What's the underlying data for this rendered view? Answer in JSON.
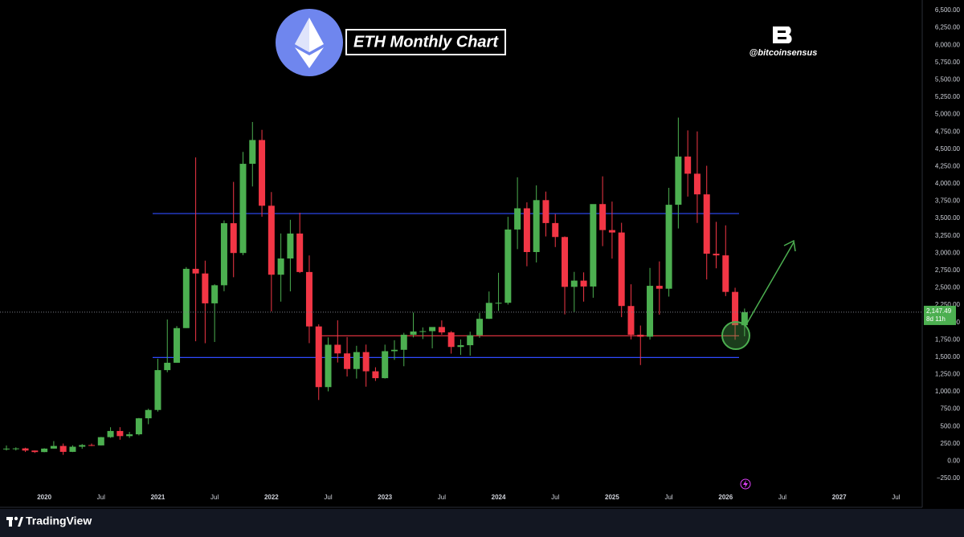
{
  "chart_data": {
    "type": "candlestick",
    "title": "ETH Monthly Chart",
    "watermark": "@bitcoinsensus",
    "platform": "TradingView",
    "categories": [
      null,
      null,
      null,
      null,
      "2020",
      null,
      null,
      null,
      null,
      null,
      "Jul",
      null,
      null,
      null,
      null,
      null,
      "2021",
      null,
      null,
      null,
      null,
      null,
      "Jul",
      null,
      null,
      null,
      null,
      null,
      "2022",
      null,
      null,
      null,
      null,
      null,
      "Jul",
      null,
      null,
      null,
      null,
      null,
      "2023",
      null,
      null,
      null,
      null,
      null,
      "Jul",
      null,
      null,
      null,
      null,
      null,
      "2024",
      null,
      null,
      null,
      null,
      null,
      "Jul",
      null,
      null,
      null,
      null,
      null,
      "2025",
      null,
      null,
      null,
      null,
      null,
      "Jul",
      null,
      null,
      null,
      null,
      null,
      "2026",
      null,
      null,
      null,
      null,
      null,
      "Jul",
      null,
      null,
      null,
      null,
      null,
      "2027",
      null,
      null,
      null,
      null,
      null,
      "Jul",
      null,
      null
    ],
    "open": [
      172,
      180,
      183,
      152,
      130,
      180,
      218,
      133,
      207,
      231,
      226,
      345,
      434,
      360,
      386,
      617,
      737,
      1312,
      1418,
      1918,
      2773,
      2706,
      2275,
      2536,
      3431,
      3001,
      4288,
      4631,
      3683,
      2688,
      2922,
      3282,
      2727,
      1942,
      1067,
      1678,
      1553,
      1328,
      1572,
      1295,
      1196,
      1585,
      1605,
      1822,
      1869,
      1874,
      1934,
      1856,
      1646,
      1671,
      1815,
      2052,
      2282,
      2283,
      3340,
      3646,
      3015,
      3764,
      3433,
      3232,
      2513,
      2603,
      2518,
      3707,
      3332,
      3297,
      2237,
      1822,
      1794,
      2528,
      2486,
      3697,
      4392,
      4145,
      3847,
      2991,
      2967,
      2440,
      1960,
      null,
      null,
      null,
      null,
      null,
      null,
      null,
      null,
      null,
      null,
      null,
      null,
      null,
      null,
      null,
      null,
      null,
      null
    ],
    "high": [
      224,
      198,
      193,
      153,
      185,
      288,
      253,
      227,
      246,
      253,
      348,
      488,
      489,
      420,
      622,
      755,
      1476,
      2042,
      1947,
      2798,
      4380,
      2891,
      2550,
      3471,
      4027,
      4460,
      4891,
      4778,
      3880,
      3283,
      3480,
      3582,
      2966,
      1972,
      1784,
      2030,
      1789,
      1663,
      1680,
      1353,
      1679,
      1743,
      1850,
      2142,
      1928,
      1929,
      2029,
      1875,
      1755,
      1866,
      2137,
      2446,
      2716,
      3523,
      4093,
      3732,
      3977,
      3887,
      3563,
      3241,
      2729,
      2722,
      3682,
      4107,
      3743,
      3437,
      2550,
      1955,
      2786,
      2880,
      3941,
      4955,
      4770,
      4755,
      4260,
      3450,
      3400,
      2500,
      2200,
      null,
      null,
      null,
      null,
      null,
      null,
      null,
      null,
      null,
      null,
      null,
      null,
      null,
      null,
      null,
      null,
      null,
      null
    ],
    "low": [
      153,
      153,
      131,
      117,
      127,
      180,
      90,
      130,
      177,
      216,
      224,
      335,
      308,
      334,
      370,
      532,
      714,
      1282,
      1438,
      1919,
      1728,
      1700,
      1718,
      2450,
      2652,
      2970,
      3961,
      3524,
      2159,
      2300,
      2448,
      2712,
      1701,
      881,
      1006,
      1422,
      1220,
      1190,
      1073,
      1156,
      1190,
      1460,
      1368,
      1784,
      1760,
      1626,
      1823,
      1550,
      1531,
      1521,
      1778,
      2050,
      2165,
      2257,
      3057,
      2810,
      2865,
      3240,
      3087,
      2116,
      2150,
      2300,
      2356,
      3100,
      2920,
      2076,
      1755,
      1385,
      1752,
      2111,
      2373,
      3355,
      3815,
      3435,
      2620,
      2780,
      2380,
      1750,
      1800,
      null,
      null,
      null,
      null,
      null,
      null,
      null,
      null,
      null,
      null,
      null,
      null,
      null,
      null,
      null,
      null,
      null,
      null
    ],
    "close": [
      180,
      183,
      152,
      130,
      180,
      218,
      133,
      207,
      231,
      226,
      345,
      434,
      360,
      386,
      617,
      737,
      1312,
      1418,
      1918,
      2773,
      2706,
      2275,
      2536,
      3431,
      3001,
      4288,
      4631,
      3683,
      2688,
      2922,
      3282,
      2727,
      1942,
      1067,
      1678,
      1553,
      1328,
      1572,
      1295,
      1196,
      1585,
      1605,
      1822,
      1869,
      1874,
      1934,
      1856,
      1646,
      1671,
      1815,
      2052,
      2282,
      2283,
      3340,
      3646,
      3015,
      3764,
      3433,
      3232,
      2513,
      2603,
      2518,
      3707,
      3332,
      3297,
      2237,
      1822,
      1794,
      2528,
      2486,
      3697,
      4392,
      4145,
      3847,
      2991,
      2967,
      2440,
      1960,
      2147.49,
      null,
      null,
      null,
      null,
      null,
      null,
      null,
      null,
      null,
      null,
      null,
      null,
      null,
      null,
      null,
      null,
      null,
      null
    ],
    "up_color": "#4caf50",
    "down_color": "#f23645",
    "levels": [
      {
        "value": 3570,
        "color": "#2f4bff"
      },
      {
        "value": 1807,
        "color": "#f23645"
      },
      {
        "value": 1494,
        "color": "#2f4bff"
      }
    ],
    "last_price": {
      "value": 2147.49,
      "label": "2,147.49"
    },
    "countdown": "8d 11h",
    "ylim": [
      -250,
      6500
    ],
    "yticks": [
      {
        "value": -250,
        "label": "−250.00"
      },
      {
        "value": 0,
        "label": "0.00"
      },
      {
        "value": 250,
        "label": "250.00"
      },
      {
        "value": 500,
        "label": "500.00"
      },
      {
        "value": 750,
        "label": "750.00"
      },
      {
        "value": 1000,
        "label": "1,000.00"
      },
      {
        "value": 1250,
        "label": "1,250.00"
      },
      {
        "value": 1500,
        "label": "1,500.00"
      },
      {
        "value": 1750,
        "label": "1,750.00"
      },
      {
        "value": 2000,
        "label": "2,000.00"
      },
      {
        "value": 2250,
        "label": "2,250.00"
      },
      {
        "value": 2500,
        "label": "2,500.00"
      },
      {
        "value": 2750,
        "label": "2,750.00"
      },
      {
        "value": 3000,
        "label": "3,000.00"
      },
      {
        "value": 3250,
        "label": "3,250.00"
      },
      {
        "value": 3500,
        "label": "3,500.00"
      },
      {
        "value": 3750,
        "label": "3,750.00"
      },
      {
        "value": 4000,
        "label": "4,000.00"
      },
      {
        "value": 4250,
        "label": "4,250.00"
      },
      {
        "value": 4500,
        "label": "4,500.00"
      },
      {
        "value": 4750,
        "label": "4,750.00"
      },
      {
        "value": 5000,
        "label": "5,000.00"
      },
      {
        "value": 5250,
        "label": "5,250.00"
      },
      {
        "value": 5500,
        "label": "5,500.00"
      },
      {
        "value": 5750,
        "label": "5,750.00"
      },
      {
        "value": 6000,
        "label": "6,000.00"
      },
      {
        "value": 6250,
        "label": "6,250.00"
      },
      {
        "value": 6500,
        "label": "6,500.00"
      }
    ],
    "grid": false
  }
}
